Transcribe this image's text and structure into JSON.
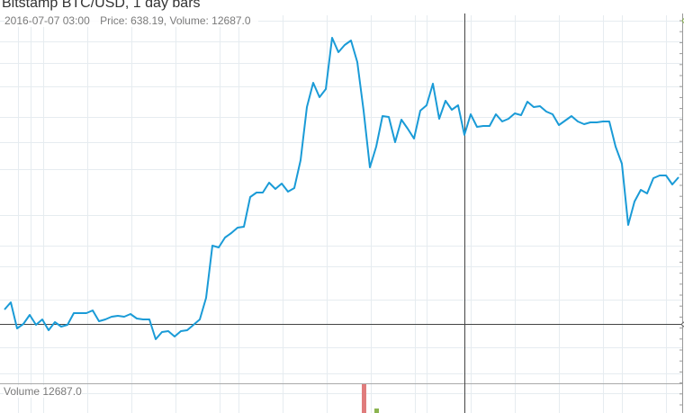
{
  "header": {
    "title": "Bitstamp BTC/USD, 1 day bars",
    "crosshair_date": "2016-07-07 03:00",
    "crosshair_values": "Price: 638.19, Volume: 12687.0"
  },
  "volume_pane": {
    "label": "Volume 12687.0"
  },
  "colors": {
    "price_line": "#1a9bd7",
    "grid": "#e6ecf0",
    "crosshair": "#444444",
    "volume_down": "#e07c7c",
    "volume_up": "#8bb450",
    "axis": "#999999"
  },
  "chart_data": {
    "type": "line",
    "title": "Bitstamp BTC/USD, 1 day bars",
    "xlabel": "",
    "ylabel": "",
    "ylim": [
      362,
      773
    ],
    "grid": true,
    "series": [
      {
        "values": [
          444,
          452,
          423,
          428,
          438,
          427,
          433,
          421,
          430,
          425,
          427,
          440,
          440,
          440,
          443,
          431,
          433,
          436,
          437,
          436,
          439,
          434,
          433,
          433,
          411,
          419,
          420,
          414,
          420,
          421,
          427,
          433,
          457,
          515,
          513,
          524,
          529,
          535,
          536,
          569,
          574,
          574,
          585,
          578,
          584,
          575,
          579,
          610,
          669,
          696,
          680,
          689,
          746,
          730,
          738,
          743,
          719,
          665,
          602,
          625,
          659,
          658,
          630,
          655,
          645,
          634,
          665,
          671,
          695,
          656,
          676,
          666,
          671,
          638.19,
          661,
          647,
          648,
          648,
          661,
          653,
          656,
          662,
          660,
          675,
          669,
          670,
          664,
          661,
          649,
          654,
          659,
          653,
          650,
          652,
          652,
          653,
          653,
          625,
          606,
          538,
          564,
          577,
          573,
          590,
          593,
          593,
          583,
          591
        ]
      }
    ],
    "highlight": {
      "date": "2016-07-07 03:00",
      "price": 638.19,
      "volume": 12687.0
    }
  }
}
